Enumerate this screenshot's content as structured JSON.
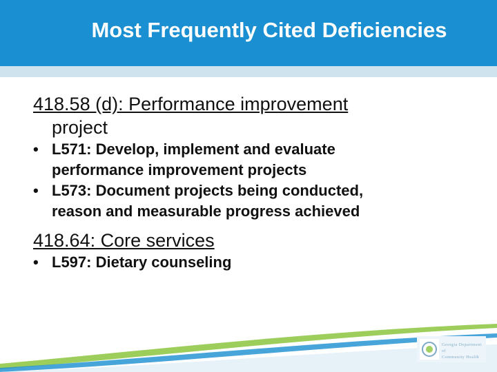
{
  "slide": {
    "title": "Most Frequently Cited Deficiencies",
    "section1": {
      "heading_line1": "418.58 (d): Performance improvement",
      "heading_line2": "project",
      "bullets": [
        {
          "line1": "L571: Develop, implement and evaluate",
          "line2": "performance improvement projects"
        },
        {
          "line1": "L573: Document projects being conducted,",
          "line2": "reason and measurable progress achieved"
        }
      ]
    },
    "section2": {
      "heading": "418.64: Core services",
      "bullets": [
        {
          "line1": "L597: Dietary counseling"
        }
      ]
    },
    "bullet_glyph": "•",
    "logo": {
      "line1": "Georgia Department of",
      "line2": "Community Health"
    }
  },
  "colors": {
    "header": "#1a8fd1",
    "header_band": "#cfe3ef",
    "swoosh_green": "#8cc63f",
    "swoosh_blue": "#1a8fd1"
  }
}
